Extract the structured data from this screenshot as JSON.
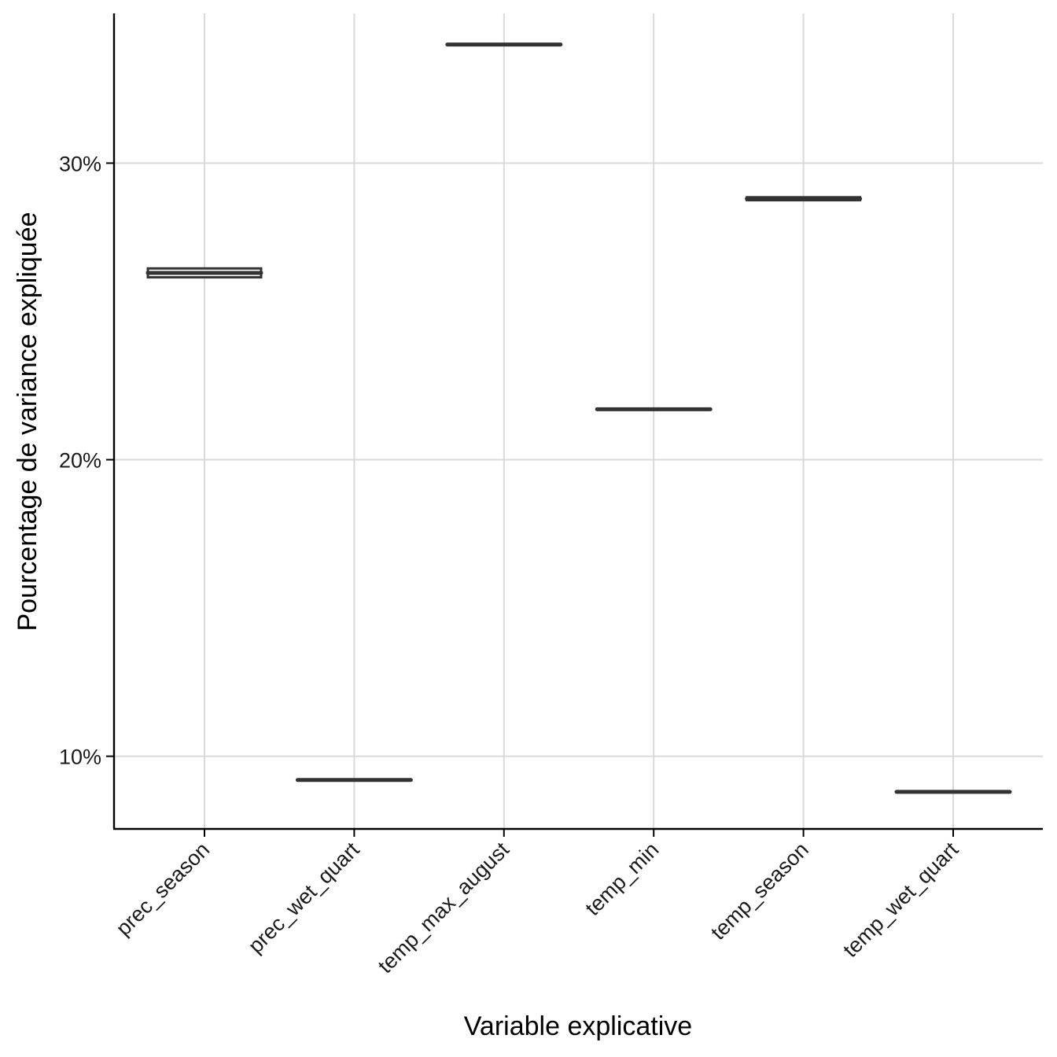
{
  "chart_data": {
    "type": "box",
    "categories": [
      "prec_season",
      "prec_wet_quart",
      "temp_max_august",
      "temp_min",
      "temp_season",
      "temp_wet_quart"
    ],
    "series": [
      {
        "values": [
          26.3,
          9.2,
          34.0,
          21.7,
          28.8,
          8.8
        ],
        "box_low": [
          26.15,
          9.2,
          34.0,
          21.7,
          28.75,
          8.8
        ],
        "box_high": [
          26.45,
          9.2,
          34.0,
          21.7,
          28.85,
          8.8
        ]
      }
    ],
    "xlabel": "Variable explicative",
    "ylabel": "Pourcentage de variance expliquée",
    "yticks": [
      10,
      20,
      30
    ],
    "ytick_labels": [
      "10%",
      "20%",
      "30%"
    ],
    "ylim": [
      7.55,
      35.05
    ],
    "grid": true,
    "colors": {
      "box_stroke": "#333333",
      "grid": "#d9d9d9"
    }
  }
}
